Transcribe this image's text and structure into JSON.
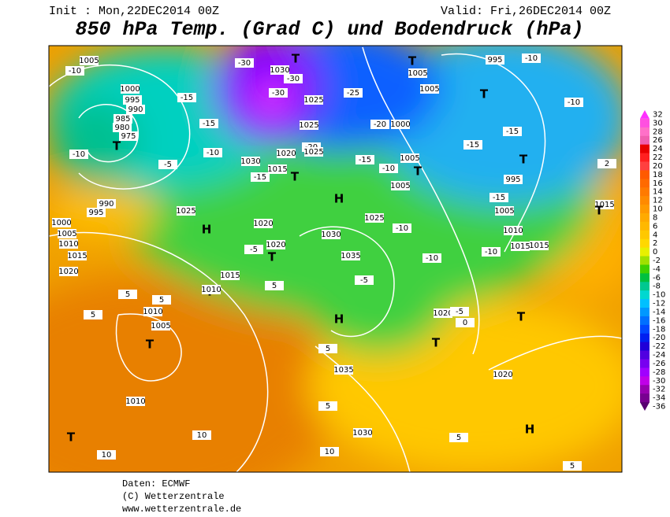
{
  "header": {
    "init": "Init : Mon,22DEC2014 00Z",
    "valid": "Valid: Fri,26DEC2014 00Z",
    "title": "850 hPa Temp. (Grad C) und Bodendruck (hPa)"
  },
  "colorbar": {
    "levels": [
      32,
      30,
      28,
      26,
      24,
      22,
      20,
      18,
      16,
      14,
      12,
      10,
      8,
      6,
      4,
      2,
      0,
      -2,
      -4,
      -6,
      -8,
      -10,
      -12,
      -14,
      -16,
      -18,
      -20,
      -22,
      -24,
      -26,
      -28,
      -30,
      -32,
      -34,
      -36
    ],
    "colors": [
      "#ff30ff",
      "#ff50e0",
      "#ff70c8",
      "#f060b0",
      "#e80000",
      "#ff2020",
      "#ff4040",
      "#ff5a00",
      "#ff6a00",
      "#ff7a00",
      "#ff8a00",
      "#ff9a00",
      "#ffaa00",
      "#ffb800",
      "#ffc800",
      "#ffd800",
      "#e8f000",
      "#a0e000",
      "#40d000",
      "#00c040",
      "#00c890",
      "#00d8d0",
      "#00c0ff",
      "#0098ff",
      "#0070ff",
      "#0048ff",
      "#0020f0",
      "#2000d8",
      "#5000e0",
      "#7800f0",
      "#a000ff",
      "#c000e8",
      "#9800b0",
      "#780090",
      "#580070"
    ]
  },
  "map_labels": [
    "1005",
    "-10",
    "1000",
    "995",
    "990",
    "985",
    "980",
    "975",
    "T",
    "-10",
    "-5",
    "-15",
    "-15",
    "-10",
    "-30",
    "1030",
    "-30",
    "-30",
    "1025",
    "1025",
    "-20",
    "1025",
    "1020",
    "1030",
    "1015",
    "-15",
    "T",
    "T",
    "H",
    "-25",
    "-20",
    "1000",
    "-15",
    "-10",
    "1005",
    "T",
    "1005",
    "T",
    "1005",
    "1005",
    "995",
    "-10",
    "T",
    "-10",
    "-15",
    "-15",
    "T",
    "995",
    "-15",
    "1005",
    "1010",
    "1015",
    "-10",
    "-10",
    "-10",
    "1025",
    "1030",
    "1035",
    "-5",
    "H",
    "1025",
    "H",
    "1020",
    "-5",
    "1020",
    "T",
    "1015",
    "T",
    "1010",
    "1015",
    "1010",
    "1005",
    "1000",
    "995",
    "990",
    "1020",
    "5",
    "5",
    "1010",
    "1005",
    "T",
    "5",
    "1010",
    "T",
    "10",
    "10",
    "5",
    "1035",
    "5",
    "1030",
    "10",
    "5",
    "H",
    "5",
    "1020",
    "T",
    "1020",
    "-5",
    "0",
    "T",
    "5",
    "1015",
    "T",
    "1015",
    "2"
  ],
  "footer": [
    "Daten: ECMWF",
    "(C) Wetterzentrale",
    "www.wetterzentrale.de"
  ]
}
